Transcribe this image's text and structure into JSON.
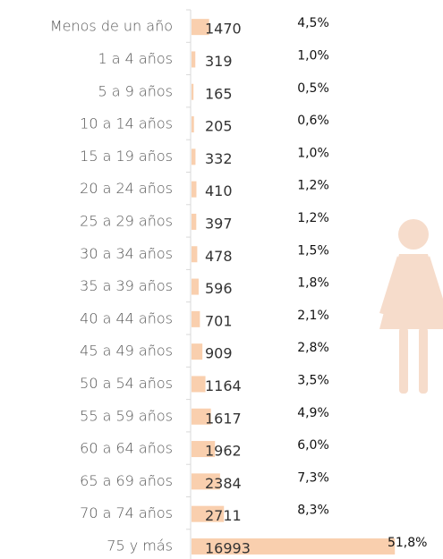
{
  "chart_data": {
    "type": "bar",
    "orientation": "horizontal",
    "categories": [
      "Menos de un año",
      "1 a 4 años",
      "5 a 9 años",
      "10 a 14 años",
      "15 a 19 años",
      "20 a 24 años",
      "25 a 29 años",
      "30 a 34 años",
      "35 a 39 años",
      "40 a 44 años",
      "45 a 49 años",
      "50 a 54 años",
      "55 a 59 años",
      "60 a 64 años",
      "65 a 69 años",
      "70 a 74 años",
      "75 y más"
    ],
    "values": [
      1470,
      319,
      165,
      205,
      332,
      410,
      397,
      478,
      596,
      701,
      909,
      1164,
      1617,
      1962,
      2384,
      2711,
      16993
    ],
    "shares": [
      {
        "value": 4.5,
        "label": "4,5%"
      },
      {
        "value": 1.0,
        "label": "1,0%"
      },
      {
        "value": 0.5,
        "label": "0,5%"
      },
      {
        "value": 0.6,
        "label": "0,6%"
      },
      {
        "value": 1.0,
        "label": "1,0%"
      },
      {
        "value": 1.2,
        "label": "1,2%"
      },
      {
        "value": 1.2,
        "label": "1,2%"
      },
      {
        "value": 1.5,
        "label": "1,5%"
      },
      {
        "value": 1.8,
        "label": "1,8%"
      },
      {
        "value": 2.1,
        "label": "2,1%"
      },
      {
        "value": 2.8,
        "label": "2,8%"
      },
      {
        "value": 3.5,
        "label": "3,5%"
      },
      {
        "value": 4.9,
        "label": "4,9%"
      },
      {
        "value": 6.0,
        "label": "6,0%"
      },
      {
        "value": 7.3,
        "label": "7,3%"
      },
      {
        "value": 8.3,
        "label": "8,3%"
      },
      {
        "value": 51.8,
        "label": "51,8%"
      }
    ],
    "color": "#f9cfae",
    "xlim": [
      0,
      17500
    ]
  }
}
